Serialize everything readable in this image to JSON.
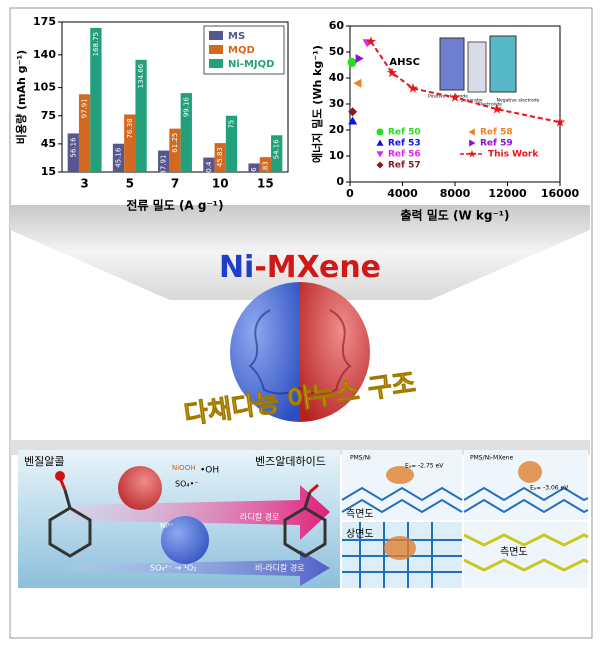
{
  "chart_data": [
    {
      "type": "bar",
      "y_label": "비용량 (mAh g⁻¹)",
      "x_label": "전류 밀도 (A g⁻¹)",
      "categories": [
        "3",
        "5",
        "7",
        "10",
        "15"
      ],
      "series": [
        {
          "name": "MS",
          "color": "#57578f",
          "values": [
            56.16,
            45.16,
            37.91,
            30.4,
            24.16
          ]
        },
        {
          "name": "MQD",
          "color": "#d2691e",
          "values": [
            97.91,
            76.38,
            61.25,
            45.83,
            30.83
          ]
        },
        {
          "name": "Ni-MJQD",
          "color": "#22a07c",
          "values": [
            168.75,
            134.66,
            99.16,
            75,
            54.16
          ]
        }
      ],
      "ylim": [
        15,
        175
      ],
      "yticks": [
        15,
        45,
        75,
        105,
        140,
        175
      ],
      "legend": "top-right"
    },
    {
      "type": "scatter",
      "y_label": "에너지 밀도 (Wh kg⁻¹)",
      "x_label": "출력 밀도 (W kg⁻¹)",
      "annotation": "AHSC",
      "inset_labels": [
        "Positive electrode",
        "Separator",
        "Electrolyte",
        "Negative electrode"
      ],
      "series": [
        {
          "name": "Ref 50",
          "color": "#22dd22",
          "marker": "circle",
          "x": [
            150
          ],
          "values": [
            46
          ]
        },
        {
          "name": "Ref 58",
          "color": "#f08020",
          "marker": "triangle-left",
          "x": [
            600
          ],
          "values": [
            38
          ]
        },
        {
          "name": "Ref 53",
          "color": "#1010ee",
          "marker": "triangle-up",
          "x": [
            200
          ],
          "values": [
            23.5
          ]
        },
        {
          "name": "Ref 59",
          "color": "#8a10d8",
          "marker": "triangle-right",
          "x": [
            700
          ],
          "values": [
            47.5
          ]
        },
        {
          "name": "Ref 56",
          "color": "#ee22ee",
          "marker": "triangle-down",
          "x": [
            1300
          ],
          "values": [
            53.5
          ]
        },
        {
          "name": "This Work",
          "color": "#e8141c",
          "marker": "star",
          "line": "dashed",
          "x": [
            1600,
            3200,
            4800,
            8000,
            11200,
            16000
          ],
          "values": [
            54,
            42,
            36,
            32.5,
            28,
            23
          ]
        },
        {
          "name": "Ref 57",
          "color": "#8b1a1a",
          "marker": "diamond",
          "x": [
            200
          ],
          "values": [
            27
          ]
        }
      ],
      "xlim": [
        0,
        16000
      ],
      "xticks": [
        0,
        4000,
        8000,
        12000,
        16000
      ],
      "ylim": [
        0,
        60
      ],
      "yticks": [
        0,
        10,
        20,
        30,
        40,
        50,
        60
      ],
      "legend": "bottom"
    }
  ],
  "graphic": {
    "title_ni": "Ni",
    "title_mxene": "-MXene",
    "subtitle": "다채다능 야누스 구조",
    "reactant": "벤질알콜",
    "product": "벤즈알데하이드",
    "radical_path": "라디칼 경로",
    "nonradical_path": "비-라디칼 경로",
    "so4_conversion": "SO₄²⁻ → ¹O₂",
    "oh_radical": "•OH",
    "so4_radical": "SO₄•⁻",
    "ni_label": "Ni²⁺",
    "nooh": "NiOOH",
    "pms_ni": "PMS/Ni",
    "pms_ni_mxene": "PMS/Ni-MXene",
    "ea_ni": "Eₐ= -2.75 eV",
    "ea_ni_mxene": "Eₐ= -3.06 eV",
    "view_side_1": "측면도",
    "view_top": "상면도",
    "view_side_2": "측면도"
  }
}
